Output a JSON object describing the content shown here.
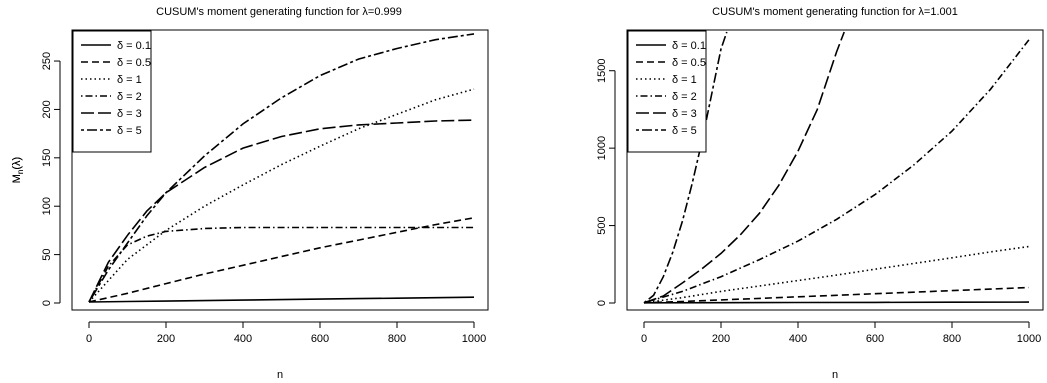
{
  "chart_data": [
    {
      "type": "line",
      "title": "CUSUM's moment generating function for λ=0.999",
      "xlabel": "n",
      "ylabel": "M_n(λ)",
      "ylabel_main": "M",
      "ylabel_sub": "n",
      "ylabel_tail": "(λ)",
      "xlim": [
        0,
        1000
      ],
      "ylim": [
        0,
        280
      ],
      "xticks": [
        "0",
        "200",
        "400",
        "600",
        "800",
        "1000"
      ],
      "xtick_values": [
        0,
        200,
        400,
        600,
        800,
        1000
      ],
      "yticks": [
        "0",
        "50",
        "100",
        "150",
        "200",
        "250"
      ],
      "ytick_values": [
        0,
        50,
        100,
        150,
        200,
        250
      ],
      "legend_position": "top-left",
      "series": [
        {
          "name": "δ = 0.1",
          "dash": "solid",
          "x": [
            0,
            100,
            200,
            300,
            400,
            500,
            600,
            700,
            800,
            900,
            1000
          ],
          "values": [
            1,
            1.5,
            2,
            2.5,
            3,
            3.5,
            4,
            4.5,
            5,
            5.5,
            6
          ]
        },
        {
          "name": "δ = 0.5",
          "dash": "dashed",
          "x": [
            0,
            100,
            200,
            300,
            400,
            500,
            600,
            700,
            800,
            900,
            1000
          ],
          "values": [
            1,
            10,
            20,
            30,
            39,
            48,
            57,
            65,
            73,
            81,
            88
          ]
        },
        {
          "name": "δ = 1",
          "dash": "dotted",
          "x": [
            0,
            100,
            200,
            300,
            400,
            500,
            600,
            700,
            800,
            900,
            1000
          ],
          "values": [
            1,
            45,
            75,
            100,
            122,
            143,
            162,
            180,
            195,
            210,
            221
          ]
        },
        {
          "name": "δ = 2",
          "dash": "dotdash",
          "x": [
            0,
            50,
            100,
            150,
            200,
            300,
            400,
            500,
            600,
            700,
            800,
            900,
            1000
          ],
          "values": [
            1,
            38,
            60,
            69,
            74,
            77,
            78,
            78,
            78,
            78,
            78,
            78,
            78
          ]
        },
        {
          "name": "δ = 3",
          "dash": "longdash",
          "x": [
            0,
            50,
            100,
            150,
            200,
            300,
            400,
            500,
            600,
            700,
            800,
            900,
            1000
          ],
          "values": [
            1,
            42,
            70,
            95,
            114,
            140,
            160,
            172,
            180,
            184,
            186,
            188,
            189
          ]
        },
        {
          "name": "δ = 5",
          "dash": "twodash",
          "x": [
            0,
            50,
            100,
            150,
            200,
            300,
            400,
            500,
            600,
            700,
            800,
            900,
            1000
          ],
          "values": [
            1,
            34,
            62,
            90,
            114,
            152,
            185,
            212,
            235,
            252,
            263,
            272,
            278
          ]
        }
      ]
    },
    {
      "type": "line",
      "title": "CUSUM's moment generating function for λ=1.001",
      "xlabel": "n",
      "ylabel": "M_n(λ)",
      "ylabel_main": "M",
      "ylabel_sub": "n",
      "ylabel_tail": "(λ)",
      "xlim": [
        0,
        1000
      ],
      "ylim": [
        0,
        1750
      ],
      "xticks": [
        "0",
        "200",
        "400",
        "600",
        "800",
        "1000"
      ],
      "xtick_values": [
        0,
        200,
        400,
        600,
        800,
        1000
      ],
      "yticks": [
        "0",
        "500",
        "1000",
        "1500"
      ],
      "ytick_values": [
        0,
        500,
        1000,
        1500
      ],
      "legend_position": "top-left",
      "series": [
        {
          "name": "δ = 0.1",
          "dash": "solid",
          "x": [
            0,
            200,
            400,
            600,
            800,
            1000
          ],
          "values": [
            1,
            2,
            3,
            4,
            5,
            6
          ]
        },
        {
          "name": "δ = 0.5",
          "dash": "dashed",
          "x": [
            0,
            100,
            200,
            300,
            400,
            500,
            600,
            700,
            800,
            900,
            1000
          ],
          "values": [
            1,
            10,
            20,
            30,
            40,
            50,
            60,
            70,
            80,
            90,
            100
          ]
        },
        {
          "name": "δ = 1",
          "dash": "dotted",
          "x": [
            0,
            100,
            200,
            300,
            400,
            500,
            600,
            700,
            800,
            900,
            1000
          ],
          "values": [
            1,
            35,
            75,
            110,
            145,
            180,
            218,
            255,
            292,
            330,
            365
          ]
        },
        {
          "name": "δ = 2",
          "dash": "dotdash",
          "x": [
            0,
            100,
            200,
            300,
            400,
            500,
            600,
            700,
            800,
            900,
            1000
          ],
          "values": [
            1,
            75,
            170,
            280,
            400,
            540,
            700,
            890,
            1110,
            1380,
            1700
          ]
        },
        {
          "name": "δ = 3",
          "dash": "longdash",
          "x": [
            0,
            50,
            100,
            150,
            200,
            250,
            300,
            350,
            400,
            450,
            500,
            520
          ],
          "values": [
            1,
            45,
            130,
            220,
            320,
            440,
            580,
            760,
            980,
            1250,
            1620,
            1750
          ]
        },
        {
          "name": "δ = 5",
          "dash": "twodash",
          "x": [
            0,
            25,
            50,
            75,
            100,
            125,
            150,
            175,
            200,
            215
          ],
          "values": [
            1,
            50,
            170,
            330,
            530,
            770,
            1040,
            1340,
            1640,
            1750
          ]
        }
      ]
    }
  ]
}
